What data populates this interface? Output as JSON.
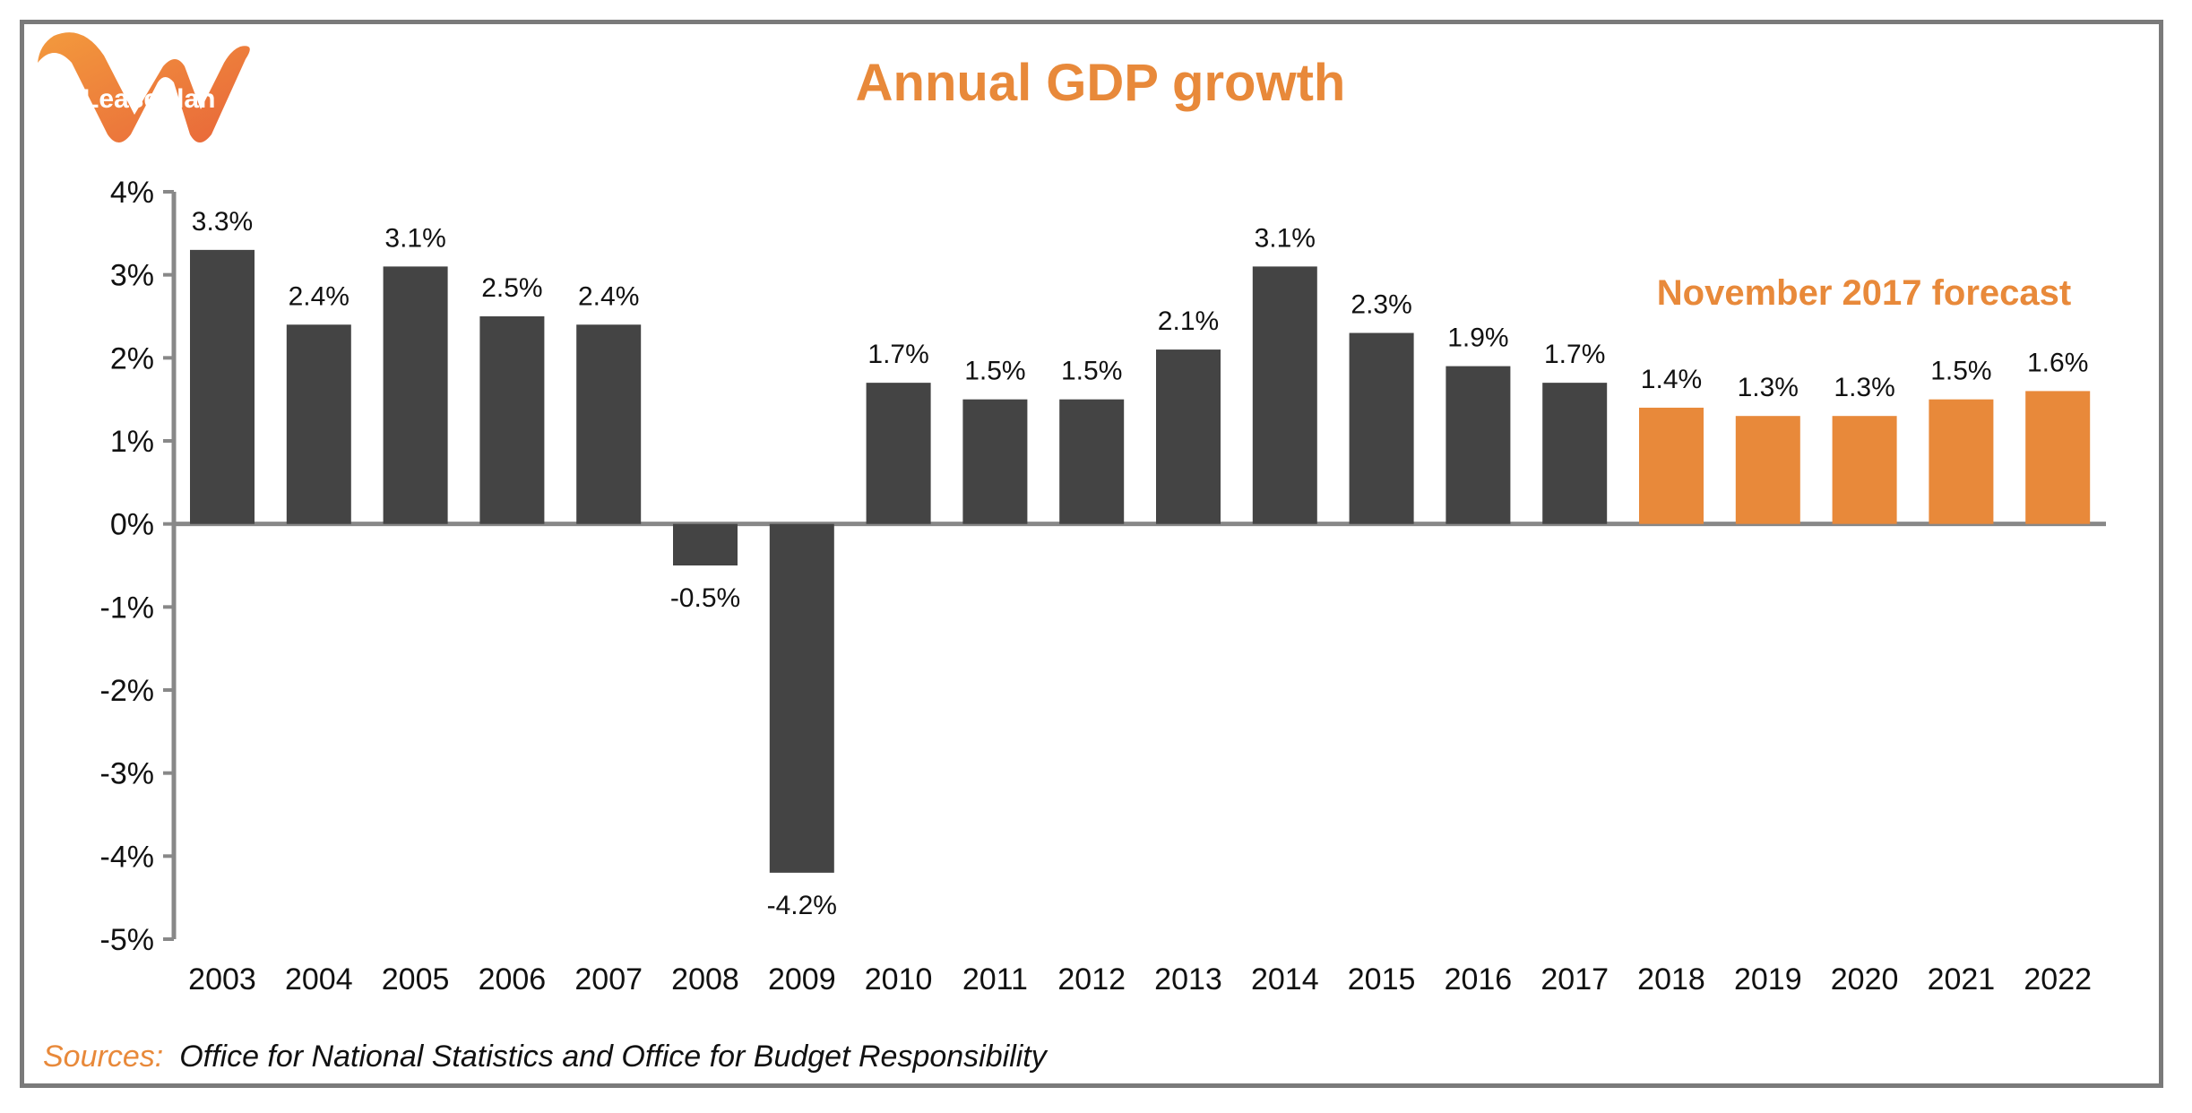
{
  "logo": {
    "text": "LeasePlan"
  },
  "colors": {
    "actual": "#444444",
    "forecast": "#e8893a",
    "accent": "#e8893a",
    "axis": "#888888",
    "text": "#111111"
  },
  "chart_data": {
    "type": "bar",
    "title": "Annual GDP growth",
    "categories": [
      "2003",
      "2004",
      "2005",
      "2006",
      "2007",
      "2008",
      "2009",
      "2010",
      "2011",
      "2012",
      "2013",
      "2014",
      "2015",
      "2016",
      "2017",
      "2018",
      "2019",
      "2020",
      "2021",
      "2022"
    ],
    "values": [
      3.3,
      2.4,
      3.1,
      2.5,
      2.4,
      -0.5,
      -4.2,
      1.7,
      1.5,
      1.5,
      2.1,
      3.1,
      2.3,
      1.9,
      1.7,
      1.4,
      1.3,
      1.3,
      1.5,
      1.6
    ],
    "value_labels": [
      "3.3%",
      "2.4%",
      "3.1%",
      "2.5%",
      "2.4%",
      "-0.5%",
      "-4.2%",
      "1.7%",
      "1.5%",
      "1.5%",
      "2.1%",
      "3.1%",
      "2.3%",
      "1.9%",
      "1.7%",
      "1.4%",
      "1.3%",
      "1.3%",
      "1.5%",
      "1.6%"
    ],
    "forecast_from_index": 15,
    "forecast_label": "November 2017 forecast",
    "ylim": [
      -5,
      4
    ],
    "yticks": [
      4,
      3,
      2,
      1,
      0,
      -1,
      -2,
      -3,
      -4,
      -5
    ],
    "ytick_labels": [
      "4%",
      "3%",
      "2%",
      "1%",
      "0%",
      "-1%",
      "-2%",
      "-3%",
      "-4%",
      "-5%"
    ],
    "xlabel": "",
    "ylabel": "",
    "grid": false
  },
  "sources": {
    "lead": "Sources:",
    "text": "Office for National Statistics and Office for Budget Responsibility"
  }
}
